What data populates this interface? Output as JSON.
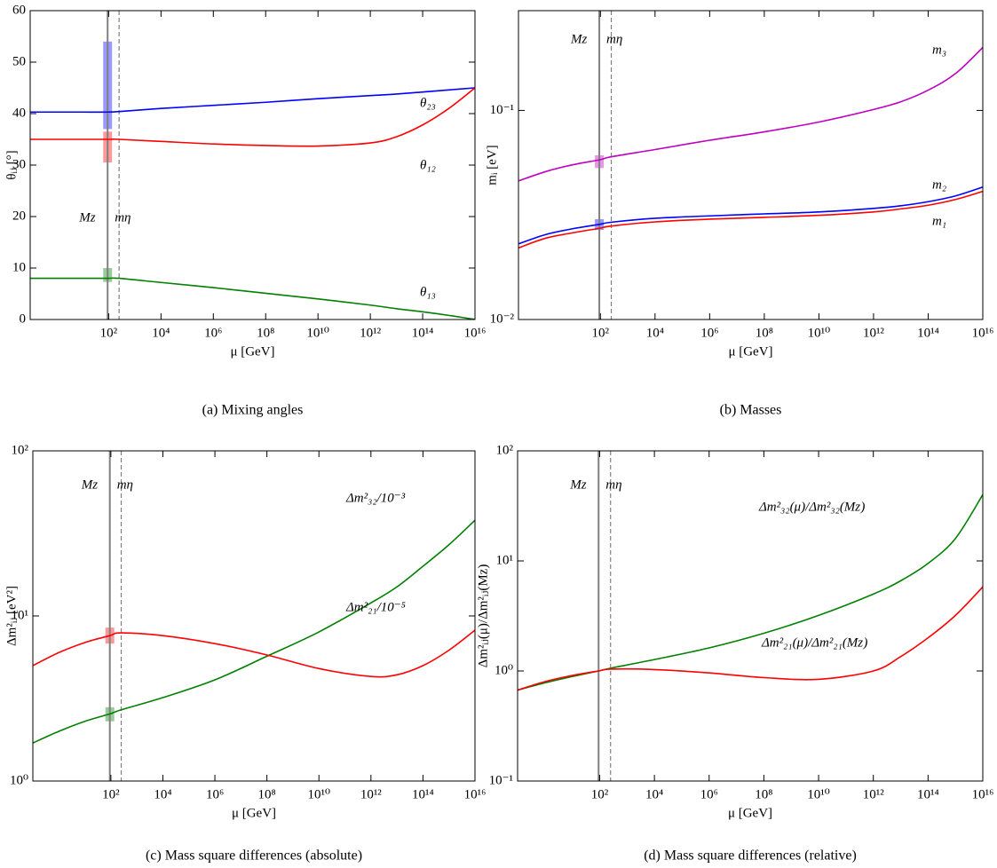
{
  "chart_data": [
    {
      "type": "line",
      "caption": "(a) Mixing angles",
      "xlabel": "μ [GeV]",
      "ylabel": "θᵢⱼ [°]",
      "xscale": "log",
      "yscale": "linear",
      "xlim": [
        0.1,
        1e+16
      ],
      "ylim": [
        0,
        60
      ],
      "xticks": [
        {
          "value": 100,
          "label": "10²"
        },
        {
          "value": 10000,
          "label": "10⁴"
        },
        {
          "value": 1000000,
          "label": "10⁶"
        },
        {
          "value": 100000000,
          "label": "10⁸"
        },
        {
          "value": 10000000000,
          "label": "10¹⁰"
        },
        {
          "value": 1000000000000,
          "label": "10¹²"
        },
        {
          "value": 100000000000000,
          "label": "10¹⁴"
        },
        {
          "value": 1e+16,
          "label": "10¹⁶"
        }
      ],
      "yticks": [
        0,
        10,
        20,
        30,
        40,
        50,
        60
      ],
      "x": [
        0.1,
        1,
        10,
        91.19,
        250,
        10000,
        1000000,
        100000000,
        10000000000,
        1000000000000,
        10000000000000,
        100000000000000,
        1000000000000000,
        1e+16
      ],
      "series": [
        {
          "name": "θ₂₃",
          "color": "#0000ff",
          "values": [
            40.3,
            40.3,
            40.3,
            40.3,
            40.4,
            41,
            41.6,
            42.2,
            42.9,
            43.5,
            43.8,
            44.2,
            44.6,
            45
          ]
        },
        {
          "name": "θ₁₂",
          "color": "#ff0000",
          "values": [
            35,
            35,
            35,
            35,
            35,
            34.6,
            34.1,
            33.8,
            33.7,
            34.3,
            35.5,
            37.8,
            41,
            45
          ]
        },
        {
          "name": "θ₁₃",
          "color": "#008000",
          "values": [
            8,
            8,
            8,
            8,
            8,
            7.2,
            6.2,
            5.1,
            4.0,
            2.8,
            2.1,
            1.5,
            0.8,
            0
          ]
        }
      ],
      "bands": [
        {
          "series": 0,
          "x": 91.19,
          "low": 37,
          "high": 54
        },
        {
          "series": 1,
          "x": 91.19,
          "low": 30.5,
          "high": 36.5
        },
        {
          "series": 2,
          "x": 91.19,
          "low": 7.3,
          "high": 10
        }
      ],
      "vlines": [
        {
          "x": 91.19,
          "label": "Mᴢ",
          "style": "solid"
        },
        {
          "x": 250,
          "label": "mη",
          "style": "dashed"
        }
      ]
    },
    {
      "type": "line",
      "caption": "(b) Masses",
      "xlabel": "μ [GeV]",
      "ylabel": "mᵢ [eV]",
      "xscale": "log",
      "yscale": "log",
      "xlim": [
        0.1,
        1e+16
      ],
      "ylim": [
        0.01,
        0.3
      ],
      "xticks": [
        {
          "value": 100,
          "label": "10²"
        },
        {
          "value": 10000,
          "label": "10⁴"
        },
        {
          "value": 1000000,
          "label": "10⁶"
        },
        {
          "value": 100000000,
          "label": "10⁸"
        },
        {
          "value": 10000000000,
          "label": "10¹⁰"
        },
        {
          "value": 1000000000000,
          "label": "10¹²"
        },
        {
          "value": 100000000000000,
          "label": "10¹⁴"
        },
        {
          "value": 1e+16,
          "label": "10¹⁶"
        }
      ],
      "yticks": [
        {
          "value": 0.01,
          "label": "10⁻²"
        },
        {
          "value": 0.1,
          "label": "10⁻¹"
        }
      ],
      "x": [
        0.1,
        1,
        10,
        91.19,
        250,
        10000,
        1000000,
        100000000,
        10000000000,
        1000000000000,
        10000000000000,
        100000000000000,
        1000000000000000,
        1e+16
      ],
      "series": [
        {
          "name": "m₃",
          "color": "#bf00bf",
          "values": [
            0.046,
            0.051,
            0.055,
            0.058,
            0.06,
            0.065,
            0.072,
            0.079,
            0.088,
            0.101,
            0.11,
            0.125,
            0.15,
            0.2
          ]
        },
        {
          "name": "m₂",
          "color": "#0000ff",
          "values": [
            0.023,
            0.0255,
            0.0272,
            0.0285,
            0.0292,
            0.0305,
            0.0313,
            0.032,
            0.0327,
            0.034,
            0.035,
            0.0366,
            0.039,
            0.043
          ]
        },
        {
          "name": "m₁",
          "color": "#ff0000",
          "values": [
            0.022,
            0.0245,
            0.026,
            0.0273,
            0.028,
            0.0293,
            0.0302,
            0.0308,
            0.0315,
            0.0327,
            0.0338,
            0.0352,
            0.0375,
            0.041
          ]
        }
      ],
      "bands": [
        {
          "series": 0,
          "x": 91.19,
          "low": 0.053,
          "high": 0.061
        },
        {
          "series": 1,
          "x": 91.19,
          "low": 0.0268,
          "high": 0.0302
        }
      ],
      "vlines": [
        {
          "x": 91.19,
          "label": "Mᴢ",
          "style": "solid"
        },
        {
          "x": 250,
          "label": "mη",
          "style": "dashed"
        }
      ]
    },
    {
      "type": "line",
      "caption": "(c) Mass square differences (absolute)",
      "xlabel": "μ [GeV]",
      "ylabel": "Δm²ᵢⱼ [eV²]",
      "xscale": "log",
      "yscale": "log",
      "xlim": [
        0.1,
        1e+16
      ],
      "ylim": [
        1,
        100
      ],
      "xticks": [
        {
          "value": 100,
          "label": "10²"
        },
        {
          "value": 10000,
          "label": "10⁴"
        },
        {
          "value": 1000000,
          "label": "10⁶"
        },
        {
          "value": 100000000,
          "label": "10⁸"
        },
        {
          "value": 10000000000,
          "label": "10¹⁰"
        },
        {
          "value": 1000000000000,
          "label": "10¹²"
        },
        {
          "value": 100000000000000,
          "label": "10¹⁴"
        },
        {
          "value": 1e+16,
          "label": "10¹⁶"
        }
      ],
      "yticks": [
        {
          "value": 1,
          "label": "10⁰"
        },
        {
          "value": 10,
          "label": "10¹"
        },
        {
          "value": 100,
          "label": "10²"
        }
      ],
      "x": [
        0.1,
        1,
        10,
        91.19,
        250,
        10000,
        1000000,
        100000000,
        10000000000,
        1000000000000,
        10000000000000,
        100000000000000,
        1000000000000000,
        1e+16
      ],
      "series": [
        {
          "name": "Δm²₃₂/10⁻³",
          "color": "#008000",
          "values": [
            1.7,
            2.0,
            2.3,
            2.55,
            2.7,
            3.2,
            4.1,
            5.7,
            8,
            12,
            15,
            20,
            27,
            38
          ]
        },
        {
          "name": "Δm²₂₁/10⁻⁵",
          "color": "#ff0000",
          "values": [
            5,
            6,
            6.9,
            7.6,
            7.9,
            7.6,
            6.8,
            5.8,
            4.8,
            4.3,
            4.4,
            5.0,
            6.2,
            8.2
          ]
        }
      ],
      "bands": [
        {
          "series": 0,
          "x": 91.19,
          "low": 2.3,
          "high": 2.8
        },
        {
          "series": 1,
          "x": 91.19,
          "low": 6.8,
          "high": 8.5
        }
      ],
      "vlines": [
        {
          "x": 91.19,
          "label": "Mᴢ",
          "style": "solid"
        },
        {
          "x": 250,
          "label": "mη",
          "style": "dashed"
        }
      ]
    },
    {
      "type": "line",
      "caption": "(d) Mass square differences (relative)",
      "xlabel": "μ [GeV]",
      "ylabel": "Δm²ᵢⱼ(μ)/Δm²ᵢⱼ(Mᴢ)",
      "xscale": "log",
      "yscale": "log",
      "xlim": [
        0.1,
        1e+16
      ],
      "ylim": [
        0.1,
        100
      ],
      "xticks": [
        {
          "value": 100,
          "label": "10²"
        },
        {
          "value": 10000,
          "label": "10⁴"
        },
        {
          "value": 1000000,
          "label": "10⁶"
        },
        {
          "value": 100000000,
          "label": "10⁸"
        },
        {
          "value": 10000000000,
          "label": "10¹⁰"
        },
        {
          "value": 1000000000000,
          "label": "10¹²"
        },
        {
          "value": 100000000000000,
          "label": "10¹⁴"
        },
        {
          "value": 1e+16,
          "label": "10¹⁶"
        }
      ],
      "yticks": [
        {
          "value": 0.1,
          "label": "10⁻¹"
        },
        {
          "value": 1,
          "label": "10⁰"
        },
        {
          "value": 10,
          "label": "10¹"
        },
        {
          "value": 100,
          "label": "10²"
        }
      ],
      "x": [
        0.1,
        1,
        10,
        91.19,
        250,
        10000,
        1000000,
        100000000,
        10000000000,
        1000000000000,
        10000000000000,
        100000000000000,
        1000000000000000,
        1e+16
      ],
      "series": [
        {
          "name": "Δm²₃₂(μ)/Δm²₃₂(Mᴢ)",
          "color": "#008000",
          "values": [
            0.67,
            0.78,
            0.89,
            1,
            1.06,
            1.27,
            1.62,
            2.2,
            3.2,
            5.0,
            6.6,
            9.5,
            16,
            40
          ]
        },
        {
          "name": "Δm²₂₁(μ)/Δm²₂₁(Mᴢ)",
          "color": "#ff0000",
          "values": [
            0.67,
            0.8,
            0.91,
            1,
            1.04,
            1.03,
            0.96,
            0.87,
            0.84,
            1.0,
            1.35,
            2.0,
            3.2,
            5.8
          ]
        }
      ],
      "bands": [],
      "vlines": [
        {
          "x": 91.19,
          "label": "Mᴢ",
          "style": "solid"
        },
        {
          "x": 250,
          "label": "mη",
          "style": "dashed"
        }
      ]
    }
  ]
}
